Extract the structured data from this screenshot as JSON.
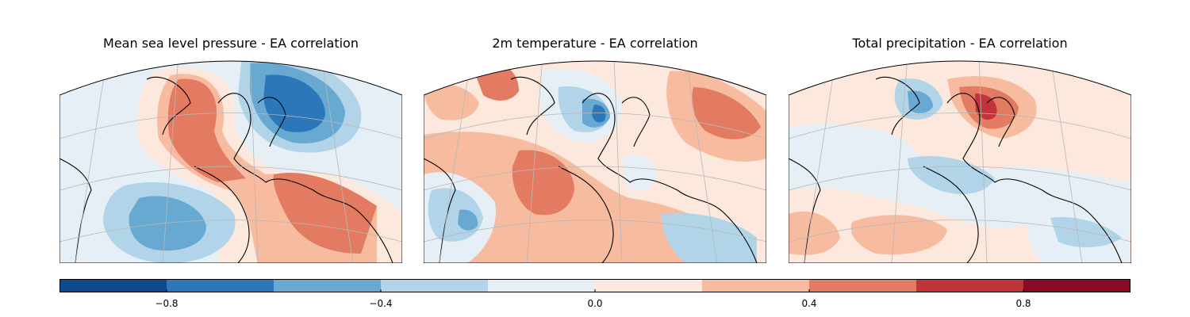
{
  "panels": [
    {
      "title": "Mean sea level pressure - EA correlation",
      "field": "msl"
    },
    {
      "title": "2m temperature - EA correlation",
      "field": "t2m"
    },
    {
      "title": "Total precipitation - EA correlation",
      "field": "tp"
    }
  ],
  "colorbar": {
    "min": -1.0,
    "max": 1.0,
    "levels": [
      -1.0,
      -0.8,
      -0.6,
      -0.4,
      -0.2,
      0.0,
      0.2,
      0.4,
      0.6,
      0.8,
      1.0
    ],
    "colors": [
      "#0d4a8c",
      "#2b77ba",
      "#68a9d1",
      "#b2d4e8",
      "#e6eff6",
      "#fce8dc",
      "#f7bba0",
      "#e27b62",
      "#c1353a",
      "#8a0c24"
    ],
    "ticks": [
      -0.8,
      -0.4,
      0.0,
      0.4,
      0.8
    ],
    "tick_labels": [
      "−0.8",
      "−0.4",
      "0.0",
      "0.4",
      "0.8"
    ]
  }
}
